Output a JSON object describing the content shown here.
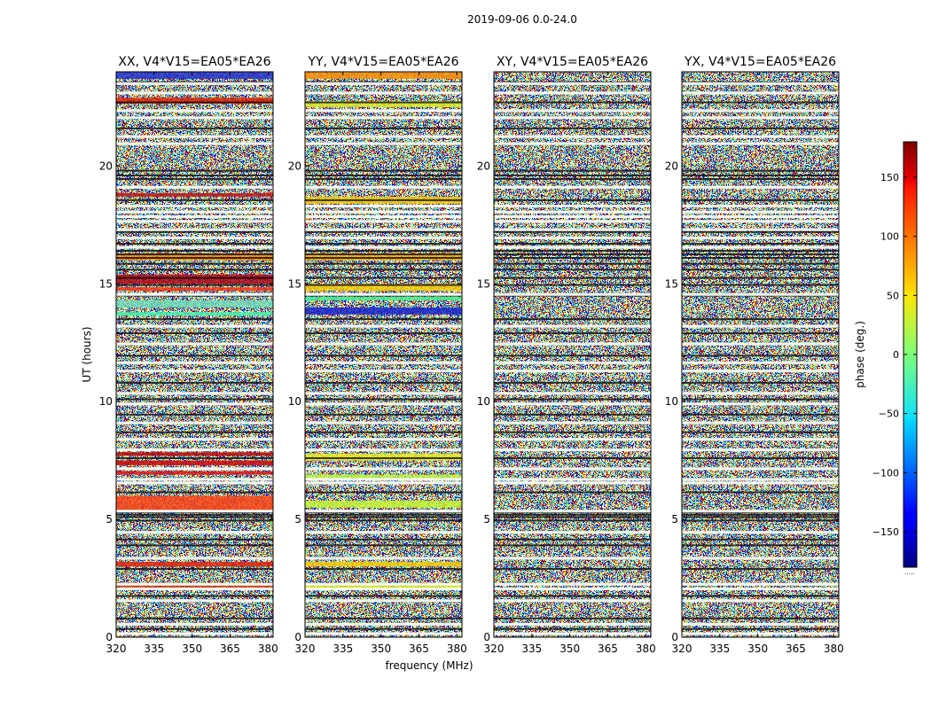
{
  "figure": {
    "suptitle": "2019-09-06 0.0-24.0",
    "shared_xlabel": "frequency (MHz)",
    "shared_ylabel": "UT (hours)"
  },
  "chart_data": [
    {
      "type": "heatmap",
      "title": "XX, V4*V15=EA05*EA26",
      "xlabel": "frequency (MHz)",
      "ylabel": "UT (hours)",
      "xlim": [
        320,
        382
      ],
      "ylim": [
        0,
        24
      ],
      "xticks": [
        320,
        335,
        350,
        365,
        380
      ],
      "yticks": [
        0,
        5,
        10,
        15,
        20
      ],
      "value": "phase (deg.)",
      "bands": [
        {
          "y": [
            23.7,
            24.0
          ],
          "color": "#2030d0"
        },
        {
          "y": [
            22.65,
            22.9
          ],
          "color": "#e02000"
        },
        {
          "y": [
            18.7,
            18.85
          ],
          "color": "#c01010"
        },
        {
          "y": [
            16.0,
            16.3
          ],
          "color": "#ff8c00"
        },
        {
          "y": [
            15.0,
            15.4
          ],
          "color": "#b00010"
        },
        {
          "y": [
            14.7,
            14.85
          ],
          "color": "#ff3010"
        },
        {
          "y": [
            14.0,
            14.3
          ],
          "color": "#70e0c0"
        },
        {
          "y": [
            13.65,
            13.8
          ],
          "color": "#40ffb0"
        },
        {
          "y": [
            7.7,
            7.85
          ],
          "color": "#c00000"
        },
        {
          "y": [
            7.3,
            7.5
          ],
          "color": "#d00000"
        },
        {
          "y": [
            6.9,
            7.05
          ],
          "color": "#e01010"
        },
        {
          "y": [
            5.4,
            6.0
          ],
          "color": "#ff4010"
        },
        {
          "y": [
            3.0,
            3.2
          ],
          "color": "#e02000"
        },
        {
          "y": [
            2.1,
            2.3
          ],
          "color": "#d04010"
        }
      ]
    },
    {
      "type": "heatmap",
      "title": "YY, V4*V15=EA05*EA26",
      "xlabel": "frequency (MHz)",
      "ylabel": "",
      "xlim": [
        320,
        382
      ],
      "ylim": [
        0,
        24
      ],
      "xticks": [
        320,
        335,
        350,
        365,
        380
      ],
      "yticks": [
        0,
        5,
        10,
        15,
        20
      ],
      "value": "phase (deg.)",
      "bands": [
        {
          "y": [
            23.7,
            24.0
          ],
          "color": "#ff9000"
        },
        {
          "y": [
            22.5,
            22.75
          ],
          "color": "#e0f020"
        },
        {
          "y": [
            18.4,
            18.7
          ],
          "color": "#ffd000"
        },
        {
          "y": [
            16.0,
            16.3
          ],
          "color": "#ffb000"
        },
        {
          "y": [
            14.7,
            15.0
          ],
          "color": "#ffd000"
        },
        {
          "y": [
            14.3,
            14.45
          ],
          "color": "#40ff90"
        },
        {
          "y": [
            13.7,
            14.0
          ],
          "color": "#1020d0"
        },
        {
          "y": [
            7.5,
            7.8
          ],
          "color": "#f0f020"
        },
        {
          "y": [
            6.75,
            6.9
          ],
          "color": "#c0ff40"
        },
        {
          "y": [
            5.5,
            5.8
          ],
          "color": "#c8ff30"
        },
        {
          "y": [
            3.0,
            3.2
          ],
          "color": "#ffd000"
        },
        {
          "y": [
            2.1,
            2.3
          ],
          "color": "#e0f020"
        }
      ]
    },
    {
      "type": "heatmap",
      "title": "XY, V4*V15=EA05*EA26",
      "xlabel": "frequency (MHz)",
      "ylabel": "",
      "xlim": [
        320,
        382
      ],
      "ylim": [
        0,
        24
      ],
      "xticks": [
        320,
        335,
        350,
        365,
        380
      ],
      "yticks": [
        0,
        5,
        10,
        15,
        20
      ],
      "value": "phase (deg.)",
      "bands": []
    },
    {
      "type": "heatmap",
      "title": "YX, V4*V15=EA05*EA26",
      "xlabel": "frequency (MHz)",
      "ylabel": "",
      "xlim": [
        320,
        382
      ],
      "ylim": [
        0,
        24
      ],
      "xticks": [
        320,
        335,
        350,
        365,
        380
      ],
      "yticks": [
        0,
        5,
        10,
        15,
        20
      ],
      "value": "phase (deg.)",
      "bands": []
    }
  ],
  "flagged_hours": [
    0.15,
    0.55,
    1.55,
    2.05,
    2.25,
    3.35,
    4.45,
    5.35,
    6.55,
    6.7,
    7.15,
    7.95,
    8.4,
    9.1,
    9.9,
    10.35,
    11.3,
    11.65,
    12.45,
    13.2,
    14.55,
    16.55,
    16.95,
    17.3,
    17.65,
    17.85,
    18.05,
    18.3,
    19.1,
    20.95,
    21.25,
    22.05,
    22.35,
    23.1,
    23.5
  ],
  "dark_hours": [
    0.35,
    0.8,
    1.75,
    2.9,
    3.9,
    4.15,
    4.95,
    5.1,
    5.2,
    5.3,
    6.15,
    7.6,
    8.7,
    9.45,
    10.1,
    10.8,
    11.95,
    12.9,
    13.5,
    14.5,
    14.95,
    15.25,
    15.6,
    15.85,
    16.1,
    16.25,
    16.4,
    16.7,
    17.2,
    18.55,
    19.45,
    19.6,
    19.8,
    21.6,
    22.7,
    23.55
  ],
  "colorbar": {
    "label": "phase (deg.)",
    "range": [
      -180,
      180
    ],
    "ticks": [
      -150,
      -100,
      -50,
      0,
      50,
      100,
      150
    ],
    "tick_labels": [
      "−150",
      "−100",
      "−50",
      "0",
      "50",
      "100",
      "150"
    ],
    "bottom_mark": "....."
  }
}
